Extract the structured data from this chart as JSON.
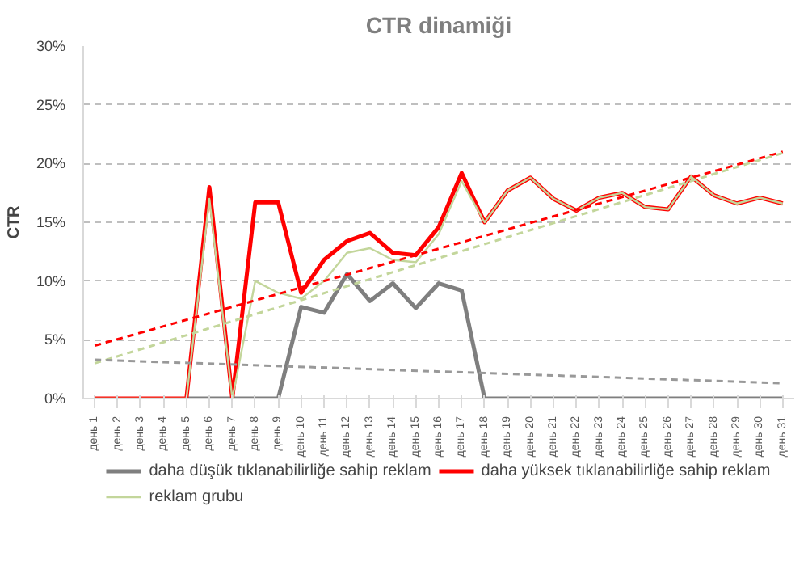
{
  "chart_data": {
    "type": "line",
    "title": "CTR dinamiği",
    "ylabel": "CTR",
    "categories": [
      "день 1",
      "день 2",
      "день 3",
      "день 4",
      "день 5",
      "день 6",
      "день 7",
      "день 8",
      "день 9",
      "день 10",
      "день 11",
      "день 12",
      "день 13",
      "день 14",
      "день 15",
      "день 16",
      "день 17",
      "день 18",
      "день 19",
      "день 20",
      "день 21",
      "день 22",
      "день 23",
      "день 24",
      "день 25",
      "день 26",
      "день 27",
      "день 28",
      "день 29",
      "день 30",
      "день 31"
    ],
    "series": [
      {
        "name": "daha düşük tıklanabilirliğe sahip reklam",
        "color": "#7f7f7f",
        "values": [
          null,
          null,
          null,
          null,
          0,
          0,
          0,
          0,
          0,
          7.8,
          7.3,
          10.6,
          8.3,
          9.8,
          7.7,
          9.8,
          9.2,
          0,
          0,
          0,
          0,
          0,
          0,
          0,
          0,
          0,
          0,
          0,
          0,
          0,
          0
        ]
      },
      {
        "name": "daha yüksek tıklanabilirliğe sahip reklam",
        "color": "#ff0000",
        "values": [
          0,
          0,
          0,
          0,
          0,
          18,
          0,
          16.7,
          16.7,
          9,
          11.8,
          13.4,
          14.1,
          12.4,
          12.2,
          14.6,
          19.2,
          15,
          17.7,
          18.8,
          17,
          16,
          17.1,
          17.5,
          16.3,
          16.1,
          18.9,
          17.3,
          16.6,
          17.1,
          16.6
        ]
      },
      {
        "name": "reklam grubu",
        "color": "#c3d69b",
        "values": [
          0,
          0,
          0,
          0,
          0,
          17,
          0,
          10,
          9,
          8.5,
          10,
          12.4,
          12.8,
          11.8,
          11.6,
          14,
          18.5,
          15,
          17.7,
          18.8,
          17,
          16,
          17.1,
          17.5,
          16.3,
          16.1,
          18.9,
          17.3,
          16.6,
          17.1,
          16.6
        ]
      },
      {
        "type": "line",
        "color": "#ff0000",
        "line_style": "dashed",
        "x": [
          "день 1",
          "день 31"
        ],
        "values": [
          4.5,
          21
        ]
      },
      {
        "type": "line",
        "color": "#c3d69b",
        "line_style": "dashed",
        "x": [
          "день 1",
          "день 31"
        ],
        "values": [
          3,
          20.9
        ]
      },
      {
        "type": "line",
        "color": "#999999",
        "line_style": "dashed",
        "x": [
          "день 1",
          "день 31"
        ],
        "values": [
          3.3,
          1.3
        ]
      }
    ],
    "ylim": [
      0,
      30
    ],
    "yticks": [
      {
        "value": 0,
        "label": "0%"
      },
      {
        "value": 5,
        "label": "5%"
      },
      {
        "value": 10,
        "label": "10%"
      },
      {
        "value": 15,
        "label": "15%"
      },
      {
        "value": 20,
        "label": "20%"
      },
      {
        "value": 25,
        "label": "25%"
      },
      {
        "value": 30,
        "label": "30%"
      }
    ],
    "grid": "y",
    "legend": "bottom",
    "line_style": "solid",
    "marker": "none"
  }
}
